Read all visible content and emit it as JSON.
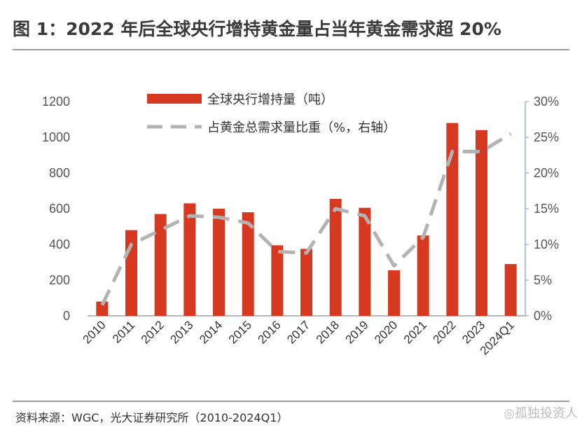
{
  "title": "图 1：2022 年后全球央行增持黄金量占当年黄金需求超 20%",
  "source": "资料来源：WGC，光大证券研究所（2010-2024Q1）",
  "watermark": "◎孤独投资人",
  "chart_data": {
    "type": "bar",
    "categories": [
      "2010",
      "2011",
      "2012",
      "2013",
      "2014",
      "2015",
      "2016",
      "2017",
      "2018",
      "2019",
      "2020",
      "2021",
      "2022",
      "2023",
      "2024Q1"
    ],
    "series": [
      {
        "name": "全球央行增持量（吨）",
        "type": "bar",
        "axis": "left",
        "color": "#d6391f",
        "values": [
          80,
          480,
          570,
          630,
          600,
          580,
          395,
          375,
          655,
          605,
          255,
          450,
          1080,
          1040,
          290
        ]
      },
      {
        "name": "占黄金总需求量比重（%，右轴）",
        "type": "line",
        "style": "dashed",
        "axis": "right",
        "color": "#b3b3b3",
        "values": [
          1.5,
          10.0,
          12.0,
          14.0,
          13.8,
          13.0,
          9.0,
          8.8,
          15.0,
          14.0,
          7.0,
          11.0,
          23.0,
          23.0,
          25.5
        ]
      }
    ],
    "yleft": {
      "min": 0,
      "max": 1200,
      "ticks": [
        "0",
        "200",
        "400",
        "600",
        "800",
        "1000",
        "1200"
      ]
    },
    "yright": {
      "min": 0,
      "max": 30,
      "ticks": [
        "0%",
        "5%",
        "10%",
        "15%",
        "20%",
        "25%",
        "30%"
      ]
    },
    "grid": false,
    "legend_position": "top-center"
  }
}
